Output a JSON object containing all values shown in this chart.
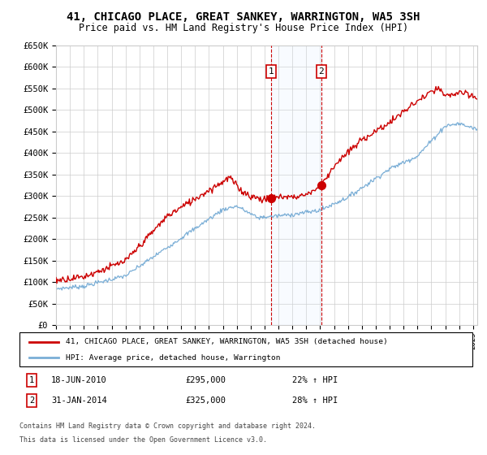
{
  "title": "41, CHICAGO PLACE, GREAT SANKEY, WARRINGTON, WA5 3SH",
  "subtitle": "Price paid vs. HM Land Registry's House Price Index (HPI)",
  "title_fontsize": 10,
  "subtitle_fontsize": 8.5,
  "ylim": [
    0,
    650000
  ],
  "yticks": [
    0,
    50000,
    100000,
    150000,
    200000,
    250000,
    300000,
    350000,
    400000,
    450000,
    500000,
    550000,
    600000,
    650000
  ],
  "xlim_start": 1995.0,
  "xlim_end": 2025.3,
  "sale1_date": 2010.46,
  "sale1_price": 295000,
  "sale1_label": "18-JUN-2010",
  "sale1_hpi_pct": "22% ↑ HPI",
  "sale2_date": 2014.08,
  "sale2_price": 325000,
  "sale2_label": "31-JAN-2014",
  "sale2_hpi_pct": "28% ↑ HPI",
  "line_color_property": "#cc0000",
  "line_color_hpi": "#7aaed6",
  "legend_label_property": "41, CHICAGO PLACE, GREAT SANKEY, WARRINGTON, WA5 3SH (detached house)",
  "legend_label_hpi": "HPI: Average price, detached house, Warrington",
  "footer1": "Contains HM Land Registry data © Crown copyright and database right 2024.",
  "footer2": "This data is licensed under the Open Government Licence v3.0.",
  "shade_color": "#ddeeff",
  "vline_color": "#cc0000",
  "marker_box_color": "#cc0000",
  "background_color": "#ffffff",
  "grid_color": "#cccccc"
}
